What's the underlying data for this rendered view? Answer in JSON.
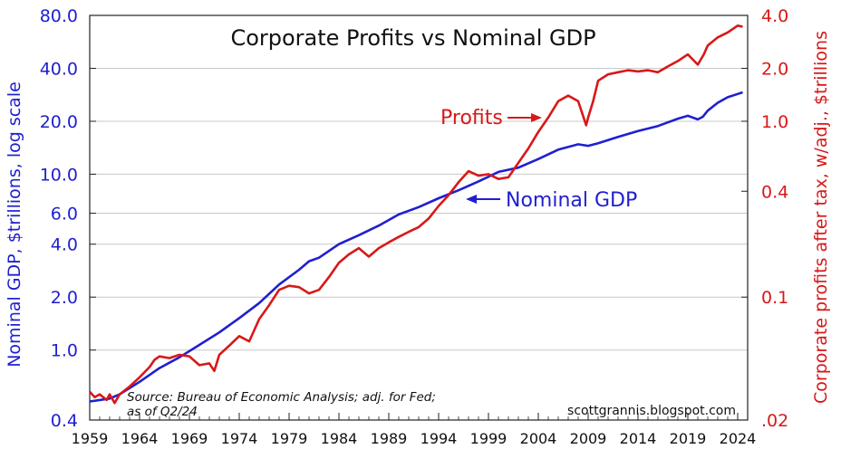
{
  "chart_data": {
    "type": "line",
    "title": "Corporate Profits vs Nominal GDP",
    "y_left": {
      "label": "Nominal GDP, $trillions, log scale",
      "scale": "log",
      "range": [
        0.4,
        80
      ],
      "ticks": [
        0.4,
        1,
        2,
        4,
        6,
        10,
        20,
        40,
        80
      ],
      "tick_labels": [
        "0.4",
        "1.0",
        "2.0",
        "4.0",
        "6.0",
        "10.0",
        "20.0",
        "40.0",
        "80.0"
      ]
    },
    "y_right": {
      "label": "Corporate profits after tax, w/adj., $trillions",
      "scale": "log",
      "range": [
        0.02,
        4
      ],
      "ticks": [
        0.02,
        0.1,
        0.4,
        1,
        2,
        4
      ],
      "tick_labels": [
        ".02",
        "0.1",
        "0.4",
        "1.0",
        "2.0",
        "4.0"
      ]
    },
    "x": {
      "range": [
        1959,
        2025
      ],
      "ticks": [
        1959,
        1964,
        1969,
        1974,
        1979,
        1984,
        1989,
        1994,
        1999,
        2004,
        2009,
        2014,
        2019,
        2024
      ],
      "tick_labels": [
        "1959",
        "1964",
        "1969",
        "1974",
        "1979",
        "1984",
        "1989",
        "1994",
        "1999",
        "2004",
        "2009",
        "2014",
        "2019",
        "2024"
      ]
    },
    "grid": "horizontal",
    "series": [
      {
        "name": "Nominal GDP",
        "axis": "left",
        "color": "#1f1fd0",
        "points": [
          [
            1959,
            0.51
          ],
          [
            1961,
            0.53
          ],
          [
            1962,
            0.56
          ],
          [
            1964,
            0.66
          ],
          [
            1966,
            0.79
          ],
          [
            1968,
            0.91
          ],
          [
            1970,
            1.07
          ],
          [
            1972,
            1.26
          ],
          [
            1974,
            1.52
          ],
          [
            1976,
            1.85
          ],
          [
            1978,
            2.36
          ],
          [
            1980,
            2.86
          ],
          [
            1981,
            3.2
          ],
          [
            1982,
            3.35
          ],
          [
            1984,
            4.0
          ],
          [
            1986,
            4.5
          ],
          [
            1988,
            5.1
          ],
          [
            1990,
            5.9
          ],
          [
            1992,
            6.5
          ],
          [
            1994,
            7.3
          ],
          [
            1996,
            8.1
          ],
          [
            1998,
            9.1
          ],
          [
            2000,
            10.3
          ],
          [
            2002,
            10.9
          ],
          [
            2004,
            12.2
          ],
          [
            2006,
            13.8
          ],
          [
            2008,
            14.8
          ],
          [
            2009,
            14.5
          ],
          [
            2010,
            15.0
          ],
          [
            2012,
            16.3
          ],
          [
            2014,
            17.6
          ],
          [
            2016,
            18.8
          ],
          [
            2018,
            20.7
          ],
          [
            2019,
            21.5
          ],
          [
            2020,
            20.5
          ],
          [
            2020.5,
            21.2
          ],
          [
            2021,
            23.0
          ],
          [
            2022,
            25.5
          ],
          [
            2023,
            27.4
          ],
          [
            2024,
            28.6
          ],
          [
            2024.5,
            29.2
          ]
        ]
      },
      {
        "name": "Profits",
        "axis": "right",
        "color": "#d81818",
        "points": [
          [
            1959,
            0.029
          ],
          [
            1959.5,
            0.027
          ],
          [
            1960,
            0.028
          ],
          [
            1960.7,
            0.026
          ],
          [
            1961,
            0.028
          ],
          [
            1961.5,
            0.025
          ],
          [
            1962,
            0.028
          ],
          [
            1963,
            0.031
          ],
          [
            1964,
            0.035
          ],
          [
            1965,
            0.04
          ],
          [
            1965.5,
            0.044
          ],
          [
            1966,
            0.046
          ],
          [
            1967,
            0.045
          ],
          [
            1968,
            0.047
          ],
          [
            1969,
            0.046
          ],
          [
            1970,
            0.041
          ],
          [
            1971,
            0.042
          ],
          [
            1971.5,
            0.038
          ],
          [
            1972,
            0.047
          ],
          [
            1973,
            0.053
          ],
          [
            1974,
            0.06
          ],
          [
            1975,
            0.056
          ],
          [
            1976,
            0.075
          ],
          [
            1977,
            0.09
          ],
          [
            1978,
            0.11
          ],
          [
            1979,
            0.116
          ],
          [
            1980,
            0.114
          ],
          [
            1981,
            0.105
          ],
          [
            1982,
            0.11
          ],
          [
            1983,
            0.13
          ],
          [
            1984,
            0.157
          ],
          [
            1985,
            0.175
          ],
          [
            1986,
            0.19
          ],
          [
            1987,
            0.17
          ],
          [
            1988,
            0.19
          ],
          [
            1989,
            0.205
          ],
          [
            1990,
            0.22
          ],
          [
            1991,
            0.235
          ],
          [
            1992,
            0.25
          ],
          [
            1993,
            0.28
          ],
          [
            1994,
            0.33
          ],
          [
            1995,
            0.38
          ],
          [
            1996,
            0.45
          ],
          [
            1997,
            0.52
          ],
          [
            1998,
            0.49
          ],
          [
            1999,
            0.5
          ],
          [
            2000,
            0.47
          ],
          [
            2001,
            0.48
          ],
          [
            2002,
            0.58
          ],
          [
            2003,
            0.7
          ],
          [
            2004,
            0.87
          ],
          [
            2005,
            1.05
          ],
          [
            2006,
            1.3
          ],
          [
            2007,
            1.4
          ],
          [
            2008,
            1.3
          ],
          [
            2008.8,
            0.95
          ],
          [
            2009,
            1.05
          ],
          [
            2009.5,
            1.3
          ],
          [
            2010,
            1.7
          ],
          [
            2011,
            1.85
          ],
          [
            2012,
            1.9
          ],
          [
            2013,
            1.95
          ],
          [
            2014,
            1.92
          ],
          [
            2015,
            1.95
          ],
          [
            2016,
            1.9
          ],
          [
            2017,
            2.05
          ],
          [
            2018,
            2.2
          ],
          [
            2019,
            2.4
          ],
          [
            2020,
            2.1
          ],
          [
            2020.6,
            2.4
          ],
          [
            2021,
            2.7
          ],
          [
            2022,
            3.0
          ],
          [
            2023,
            3.2
          ],
          [
            2024,
            3.5
          ],
          [
            2024.5,
            3.45
          ]
        ]
      }
    ],
    "annotations": [
      {
        "text": "Profits",
        "series": "Profits"
      },
      {
        "text": "Nominal GDP",
        "series": "Nominal GDP"
      }
    ],
    "source": [
      "Source: Bureau of Economic Analysis; adj. for Fed;",
      "as of Q2/24"
    ],
    "credit": "scottgrannis.blogspot.com"
  }
}
